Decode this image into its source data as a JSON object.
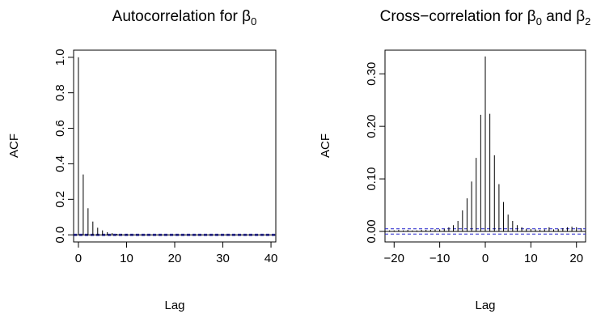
{
  "chart_data": [
    {
      "type": "bar",
      "title_main": "Autocorrelation for β",
      "title_sub": "0",
      "xlabel": "Lag",
      "ylabel": "ACF",
      "xlim": [
        -1,
        41
      ],
      "ylim": [
        -0.04,
        1.04
      ],
      "xticks": [
        0,
        10,
        20,
        30,
        40
      ],
      "xtick_labels": [
        "0",
        "10",
        "20",
        "30",
        "40"
      ],
      "yticks": [
        0,
        0.2,
        0.4,
        0.6,
        0.8,
        1.0
      ],
      "ytick_labels": [
        "0.0",
        "0.2",
        "0.4",
        "0.6",
        "0.8",
        "1.0"
      ],
      "lags": [
        0,
        1,
        2,
        3,
        4,
        5,
        6,
        7,
        8,
        9,
        10,
        11,
        12,
        13,
        14,
        15,
        16,
        17,
        18,
        19,
        20,
        21,
        22,
        23,
        24,
        25,
        26,
        27,
        28,
        29,
        30,
        31,
        32,
        33,
        34,
        35,
        36,
        37,
        38,
        39,
        40
      ],
      "values": [
        1.0,
        0.34,
        0.15,
        0.075,
        0.04,
        0.025,
        0.015,
        0.01,
        0.005,
        0.004,
        0.003,
        0.002,
        0.002,
        0.001,
        0.001,
        0.001,
        0.001,
        0.001,
        0.001,
        0.001,
        0.001,
        0.001,
        0.001,
        0.001,
        0.001,
        0.001,
        0.001,
        0.001,
        0.001,
        0.001,
        0.001,
        0.001,
        0.001,
        0.001,
        0.001,
        0.001,
        0.001,
        0.001,
        0.001,
        0.001,
        0.001
      ],
      "ci": 0.004,
      "ci_color": "#2222cc",
      "grid": false
    },
    {
      "type": "bar",
      "title_main": "Cross−correlation for β",
      "title_sub": "0",
      "title_mid": " and β",
      "title_sub2": "2",
      "xlabel": "Lag",
      "ylabel": "ACF",
      "xlim": [
        -22,
        22
      ],
      "ylim": [
        -0.02,
        0.345
      ],
      "xticks": [
        -20,
        -10,
        0,
        10,
        20
      ],
      "xtick_labels": [
        "−20",
        "−10",
        "0",
        "10",
        "20"
      ],
      "yticks": [
        0,
        0.1,
        0.2,
        0.3
      ],
      "ytick_labels": [
        "0.00",
        "0.10",
        "0.20",
        "0.30"
      ],
      "lags": [
        -21,
        -20,
        -19,
        -18,
        -17,
        -16,
        -15,
        -14,
        -13,
        -12,
        -11,
        -10,
        -9,
        -8,
        -7,
        -6,
        -5,
        -4,
        -3,
        -2,
        -1,
        0,
        1,
        2,
        3,
        4,
        5,
        6,
        7,
        8,
        9,
        10,
        11,
        12,
        13,
        14,
        15,
        16,
        17,
        18,
        19,
        20,
        21
      ],
      "values": [
        0.002,
        0.002,
        0.003,
        0.002,
        0.003,
        0.002,
        0.002,
        0.003,
        0.003,
        0.003,
        0.004,
        0.004,
        0.005,
        0.008,
        0.012,
        0.02,
        0.04,
        0.063,
        0.095,
        0.14,
        0.222,
        0.333,
        0.224,
        0.145,
        0.09,
        0.056,
        0.032,
        0.02,
        0.012,
        0.008,
        0.005,
        0.005,
        0.004,
        0.003,
        0.004,
        0.008,
        0.004,
        0.005,
        0.006,
        0.008,
        0.009,
        0.008,
        0.006
      ],
      "ci": 0.005,
      "ci_color": "#2222cc",
      "grid": false
    }
  ]
}
